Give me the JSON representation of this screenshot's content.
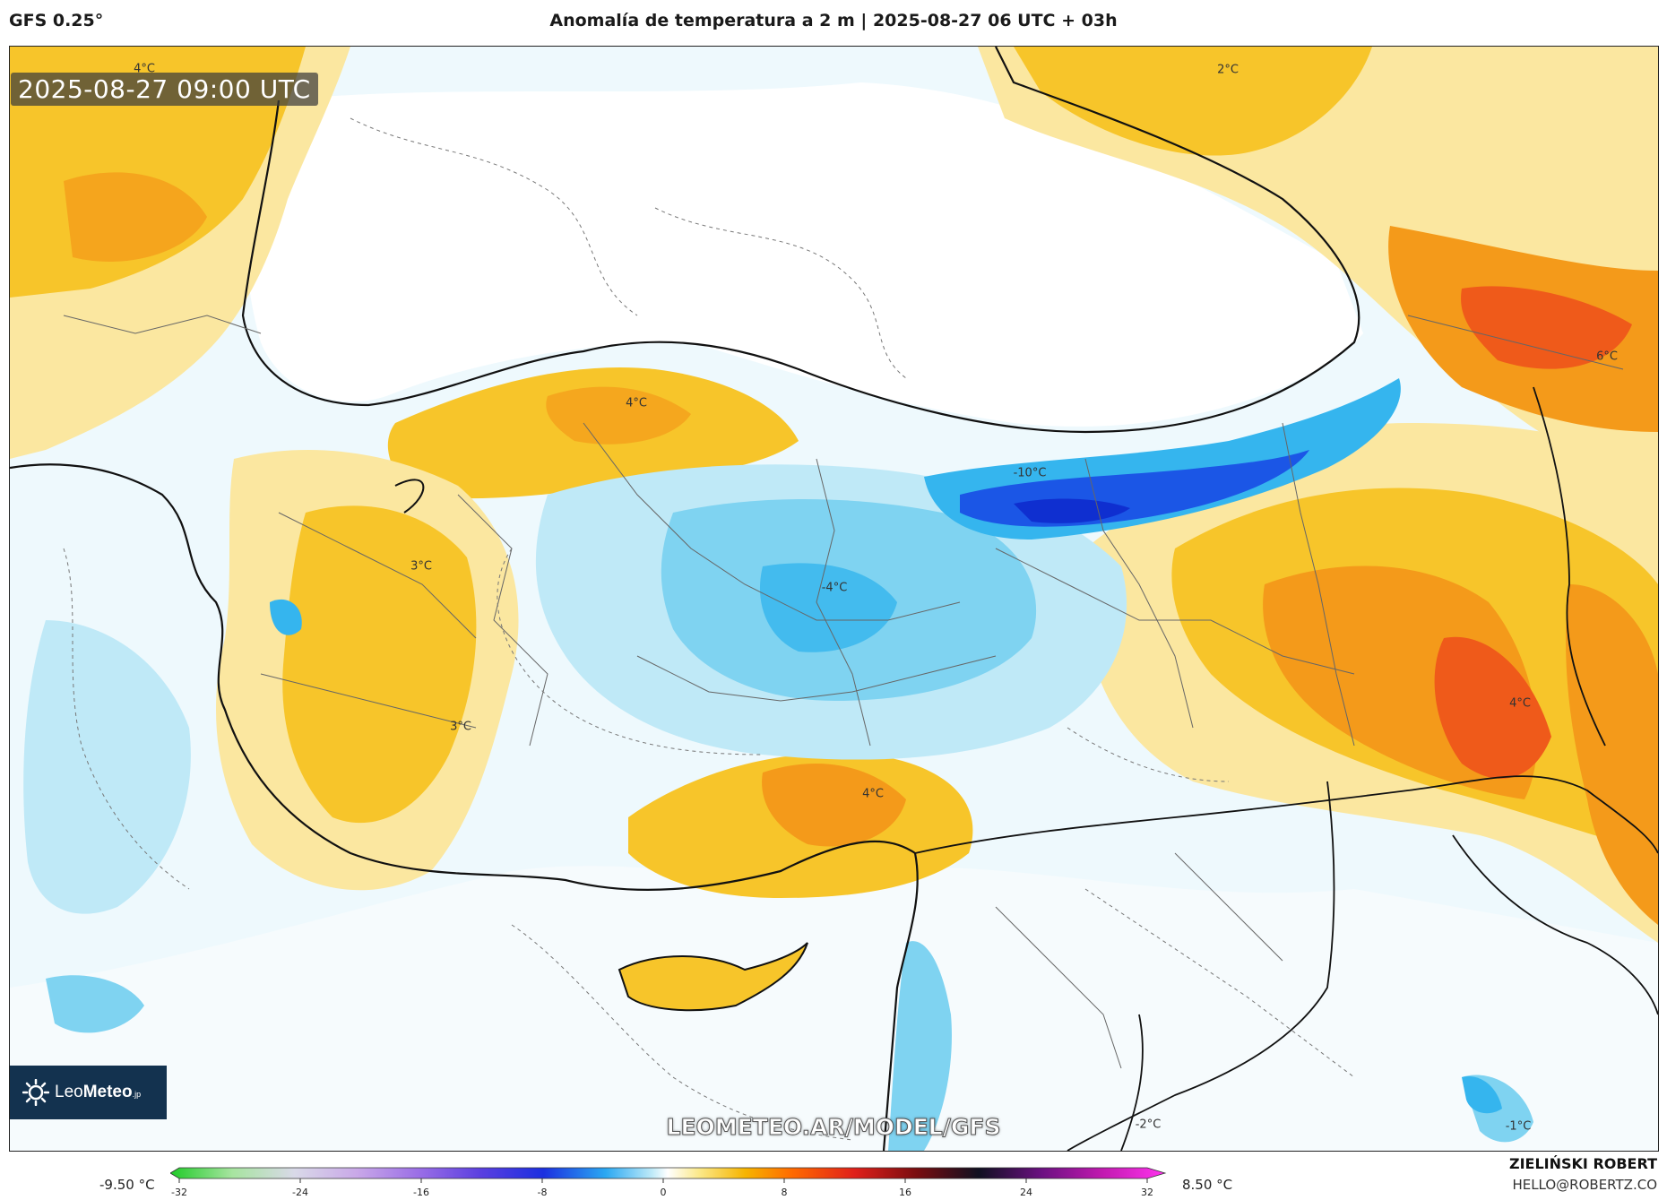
{
  "header": {
    "model": "GFS 0.25°",
    "title": "Anomalía de temperatura a 2 m | 2025-08-27 06 UTC + 03h"
  },
  "timestamp": "2025-08-27 09:00 UTC",
  "logo": {
    "text_light": "Leo",
    "text_bold": "Meteo",
    "suffix": ".jp"
  },
  "watermark": "LEOMETEO.AR/MODEL/GFS",
  "credit": {
    "name": "ZIELIŃSKI ROBERT",
    "email": "HELLO@ROBERTZ.CO"
  },
  "legend": {
    "min_label": "-9.50 °C",
    "max_label": "8.50 °C",
    "ticks": [
      "-32",
      "-24",
      "-16",
      "-8",
      "0",
      "8",
      "16",
      "24",
      "32"
    ],
    "range": [
      -32,
      32
    ],
    "stops": [
      {
        "v": -32,
        "c": "#1fcb28"
      },
      {
        "v": -28,
        "c": "#a7e4a0"
      },
      {
        "v": -24,
        "c": "#d9d9e8"
      },
      {
        "v": -20,
        "c": "#c9a8e8"
      },
      {
        "v": -16,
        "c": "#9a6ee6"
      },
      {
        "v": -12,
        "c": "#5a3fe0"
      },
      {
        "v": -8,
        "c": "#1b2fe0"
      },
      {
        "v": -4,
        "c": "#2aa8f2"
      },
      {
        "v": -1,
        "c": "#bfeaf8"
      },
      {
        "v": 0,
        "c": "#ffffff"
      },
      {
        "v": 2,
        "c": "#fbe98a"
      },
      {
        "v": 5,
        "c": "#f6b400"
      },
      {
        "v": 8,
        "c": "#ff6a00"
      },
      {
        "v": 12,
        "c": "#e0201a"
      },
      {
        "v": 16,
        "c": "#7a0d10"
      },
      {
        "v": 20,
        "c": "#101020"
      },
      {
        "v": 24,
        "c": "#6a1080"
      },
      {
        "v": 28,
        "c": "#c21ab0"
      },
      {
        "v": 32,
        "c": "#ff33ee"
      }
    ]
  },
  "map_labels": {
    "n_caucasus": "2°C",
    "east_caucasus": "6°C",
    "north_anatolia": "4°C",
    "black_sea_coast": "-10°C",
    "west_anatolia": "3°C",
    "central_anatolia": "-4°C",
    "southwest_anatolia": "3°C",
    "south_coast": "4°C",
    "southeast_anatolia": "4°C",
    "syria": "-2°C",
    "iraq": "-1°C",
    "thrace": "4°C"
  },
  "colors": {
    "sea_cold": "#eaf7fc",
    "ice_blue": "#bfe9f7",
    "light_blue": "#7fd3f1",
    "blue": "#35b5ee",
    "deep_blue": "#1b56e6",
    "pale_yellow": "#fbe7a0",
    "yellow": "#f7c52a",
    "orange": "#f49a1a",
    "red_orange": "#ef5a1a"
  }
}
